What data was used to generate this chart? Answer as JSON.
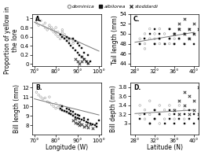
{
  "legend_labels": [
    "dominica",
    "albilorea",
    "stoddardi"
  ],
  "panel_A": {
    "label": "A.",
    "xlabel": "",
    "ylabel": "Proportion of yellow in\nthe lore",
    "xlim": [
      69,
      101
    ],
    "ylim": [
      -0.05,
      1.1
    ],
    "yticks": [
      0.0,
      0.2,
      0.4,
      0.6,
      0.8,
      1.0
    ],
    "xticks": [
      70,
      80,
      90,
      100
    ],
    "xticklabels": [
      "70°",
      "80°",
      "90°",
      "100°"
    ],
    "trend_x": [
      70,
      100
    ],
    "trend_y": [
      0.92,
      0.28
    ],
    "dominica_x": [
      71,
      71,
      72,
      73,
      74,
      75,
      75,
      76,
      77,
      77,
      78,
      78,
      79,
      79,
      80,
      80,
      80,
      81,
      81,
      82,
      82,
      83,
      83,
      83,
      84,
      84,
      85,
      86,
      87,
      88,
      88
    ],
    "dominica_y": [
      0.9,
      1.0,
      0.85,
      0.95,
      0.85,
      0.8,
      0.9,
      0.75,
      0.8,
      0.85,
      0.75,
      0.8,
      0.7,
      0.75,
      0.65,
      0.7,
      0.8,
      0.6,
      0.7,
      0.55,
      0.65,
      0.6,
      0.7,
      0.75,
      0.6,
      0.65,
      0.55,
      0.5,
      0.55,
      0.45,
      0.5
    ],
    "albilorea_x": [
      82,
      83,
      84,
      85,
      85,
      86,
      86,
      87,
      88,
      88,
      89,
      89,
      90,
      90,
      91,
      91,
      92,
      92,
      93,
      93,
      94,
      95,
      95,
      96
    ],
    "albilorea_y": [
      0.65,
      0.6,
      0.55,
      0.5,
      0.6,
      0.45,
      0.55,
      0.4,
      0.35,
      0.55,
      0.3,
      0.5,
      0.25,
      0.45,
      0.2,
      0.4,
      0.15,
      0.35,
      0.1,
      0.25,
      0.05,
      0.0,
      0.2,
      0.05
    ],
    "stoddardi_x": [
      89,
      90,
      91,
      92,
      92,
      93,
      94,
      95
    ],
    "stoddardi_y": [
      0.1,
      0.05,
      0.0,
      0.05,
      0.15,
      0.1,
      0.05,
      0.02
    ]
  },
  "panel_B": {
    "label": "B.",
    "xlabel": "Longitude (W)",
    "ylabel": "Bill length (mm)",
    "xlim": [
      69,
      101
    ],
    "ylim": [
      7.0,
      12.5
    ],
    "yticks": [
      8,
      9,
      10,
      11,
      12
    ],
    "xticks": [
      70,
      80,
      90,
      100
    ],
    "xticklabels": [
      "70°",
      "80°",
      "90°",
      "100°"
    ],
    "trend_x": [
      70,
      100
    ],
    "trend_y": [
      10.8,
      9.1
    ],
    "dominica_x": [
      71,
      72,
      73,
      74,
      75,
      76,
      77,
      77,
      78,
      79,
      80,
      80,
      81,
      82,
      82,
      83,
      83,
      84,
      85,
      86,
      87,
      88
    ],
    "dominica_y": [
      11.5,
      11.2,
      11.0,
      10.8,
      10.9,
      10.5,
      10.4,
      11.0,
      10.2,
      10.0,
      9.8,
      10.3,
      9.9,
      9.7,
      10.1,
      9.6,
      10.0,
      9.5,
      9.4,
      9.3,
      9.2,
      9.1
    ],
    "albilorea_x": [
      82,
      83,
      83,
      84,
      85,
      85,
      86,
      86,
      87,
      87,
      88,
      88,
      89,
      89,
      90,
      90,
      91,
      91,
      92,
      93,
      93,
      94,
      95,
      95,
      96,
      97,
      98,
      99,
      99,
      100
    ],
    "albilorea_y": [
      9.8,
      9.6,
      10.0,
      9.5,
      9.4,
      9.8,
      9.3,
      9.7,
      9.2,
      9.5,
      9.0,
      9.4,
      8.9,
      9.2,
      8.8,
      9.1,
      8.7,
      9.0,
      8.6,
      8.5,
      8.8,
      8.4,
      8.3,
      8.6,
      8.2,
      8.1,
      8.0,
      7.9,
      8.2,
      8.5
    ],
    "stoddardi_x": [
      88,
      89,
      89,
      90,
      91,
      91,
      92,
      93,
      94,
      95,
      96,
      97
    ],
    "stoddardi_y": [
      8.5,
      8.3,
      8.7,
      8.2,
      8.0,
      8.4,
      8.1,
      7.9,
      8.0,
      7.8,
      8.1,
      7.7
    ]
  },
  "panel_C": {
    "label": "C.",
    "xlabel": "",
    "ylabel": "Tail length (mm)",
    "xlim": [
      27,
      41
    ],
    "ylim": [
      43.5,
      53.5
    ],
    "yticks": [
      44,
      46,
      48,
      50,
      52,
      54
    ],
    "xticks": [
      28,
      32,
      36,
      40
    ],
    "xticklabels": [
      "28°",
      "32°",
      "36°",
      "40°"
    ],
    "trend_x": [
      28,
      40
    ],
    "trend_y": [
      48.3,
      50.3
    ],
    "dominica_x": [
      29,
      29,
      30,
      30,
      30,
      31,
      31,
      32,
      32,
      32,
      33,
      33,
      33,
      34,
      34,
      35,
      35,
      35,
      36,
      36,
      36,
      37,
      37,
      38,
      38,
      39
    ],
    "dominica_y": [
      48,
      49,
      47,
      50,
      48,
      49,
      51,
      48,
      50,
      49,
      51,
      49,
      48,
      50,
      48,
      49,
      51,
      48,
      50,
      48,
      49,
      51,
      49,
      48,
      50,
      49
    ],
    "albilorea_x": [
      29,
      30,
      31,
      32,
      32,
      33,
      33,
      34,
      35,
      35,
      36,
      36,
      37,
      37,
      38,
      38,
      39,
      39,
      40,
      40
    ],
    "albilorea_y": [
      48,
      49,
      50,
      48,
      51,
      49,
      50,
      48,
      51,
      49,
      50,
      48,
      49,
      51,
      48,
      50,
      49,
      51,
      50,
      48
    ],
    "stoddardi_x": [
      36,
      37,
      37,
      38,
      38,
      39,
      39,
      40,
      40,
      41
    ],
    "stoddardi_y": [
      50,
      51,
      52,
      50,
      53,
      51,
      49,
      50,
      52,
      51
    ]
  },
  "panel_D": {
    "label": "D.",
    "xlabel": "Latitude (N)",
    "ylabel": "Bill depth (mm)",
    "xlim": [
      27,
      41
    ],
    "ylim": [
      2.75,
      3.9
    ],
    "yticks": [
      3.0,
      3.2,
      3.4,
      3.6,
      3.8
    ],
    "xticks": [
      28,
      32,
      36,
      40
    ],
    "xticklabels": [
      "28°",
      "32°",
      "36°",
      "40°"
    ],
    "trend_x": [
      28,
      40
    ],
    "trend_y": [
      3.22,
      3.3
    ],
    "dominica_x": [
      29,
      29,
      30,
      30,
      31,
      31,
      31,
      32,
      32,
      33,
      33,
      33,
      34,
      34,
      35,
      35,
      36,
      36,
      37,
      37,
      38,
      38
    ],
    "dominica_y": [
      3.2,
      3.4,
      3.1,
      3.3,
      3.2,
      3.5,
      3.0,
      3.1,
      3.3,
      3.2,
      3.4,
      3.0,
      3.1,
      3.3,
      3.2,
      3.4,
      3.1,
      3.3,
      3.2,
      3.4,
      3.1,
      3.3
    ],
    "albilorea_x": [
      29,
      30,
      31,
      32,
      32,
      33,
      34,
      35,
      35,
      36,
      36,
      37,
      38,
      38,
      39,
      39,
      40,
      40,
      41
    ],
    "albilorea_y": [
      3.1,
      3.2,
      3.0,
      3.1,
      3.3,
      3.2,
      3.0,
      3.1,
      3.3,
      3.2,
      3.0,
      3.1,
      3.0,
      3.2,
      3.1,
      3.3,
      3.0,
      3.2,
      3.1
    ],
    "stoddardi_x": [
      36,
      37,
      37,
      38,
      38,
      39,
      39,
      40,
      40,
      41,
      41
    ],
    "stoddardi_y": [
      3.3,
      3.5,
      3.2,
      3.7,
      3.4,
      3.2,
      3.6,
      3.3,
      3.5,
      3.2,
      3.8
    ]
  },
  "tick_fontsize": 5,
  "label_fontsize": 5.5
}
